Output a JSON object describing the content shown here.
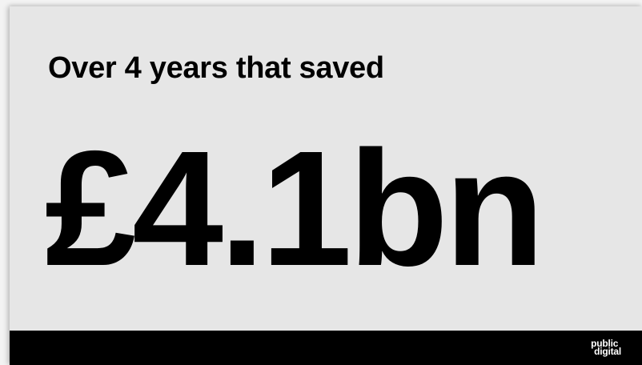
{
  "slide": {
    "headline": "Over 4 years that saved",
    "figure": "£4.1bn"
  },
  "footer": {
    "logo_line1": "public",
    "logo_line2": "digital"
  },
  "colors": {
    "slide_background": "#e6e6e6",
    "text": "#000000",
    "footer_background": "#000000",
    "logo_text": "#ffffff"
  }
}
